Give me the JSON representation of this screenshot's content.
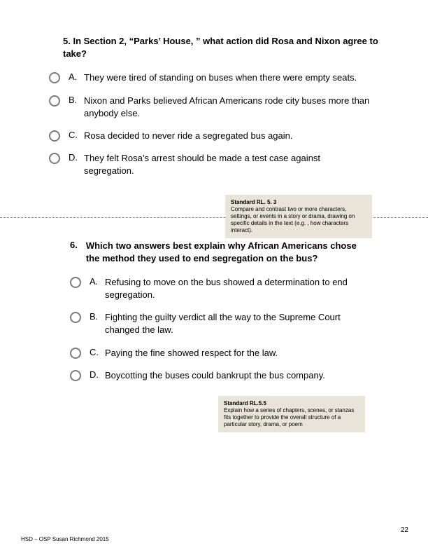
{
  "q5": {
    "prompt": "5. In Section 2, “Parks’ House, ” what action did Rosa and Nixon agree to take?",
    "choices": [
      {
        "letter": "A.",
        "text": "They were tired of standing on buses when there were empty seats."
      },
      {
        "letter": "B.",
        "text": "Nixon and Parks believed African Americans rode city buses more than anybody else."
      },
      {
        "letter": "C.",
        "text": "Rosa decided to never ride a segregated bus again."
      },
      {
        "letter": "D.",
        "text": "They felt Rosa’s arrest should be made a test case against segregation."
      }
    ]
  },
  "standard1": {
    "title": "Standard RL. 5. 3",
    "body": "Compare and contrast two or more characters, settings, or events in a story or drama, drawing on specific details in the text (e.g. , how characters interact)."
  },
  "q6": {
    "num": "6.",
    "prompt": "Which two answers best explain why African Americans chose the method they used to end segregation on the bus?",
    "choices": [
      {
        "letter": "A.",
        "text": "Refusing to move on the bus showed a determination to end segregation."
      },
      {
        "letter": "B.",
        "text": "Fighting the guilty verdict all the way to the Supreme Court changed the law."
      },
      {
        "letter": "C.",
        "text": "Paying the fine showed respect for the law."
      },
      {
        "letter": "D.",
        "text": "Boycotting the buses could bankrupt the bus company."
      }
    ]
  },
  "standard2": {
    "title": "Standard RL.5.5",
    "body": "Explain how a series of chapters, scenes, or stanzas fits together to provide the overall structure of a particular story, drama, or poem"
  },
  "footer": "HSD – OSP Susan Richmond 2015",
  "pageNum": "22"
}
